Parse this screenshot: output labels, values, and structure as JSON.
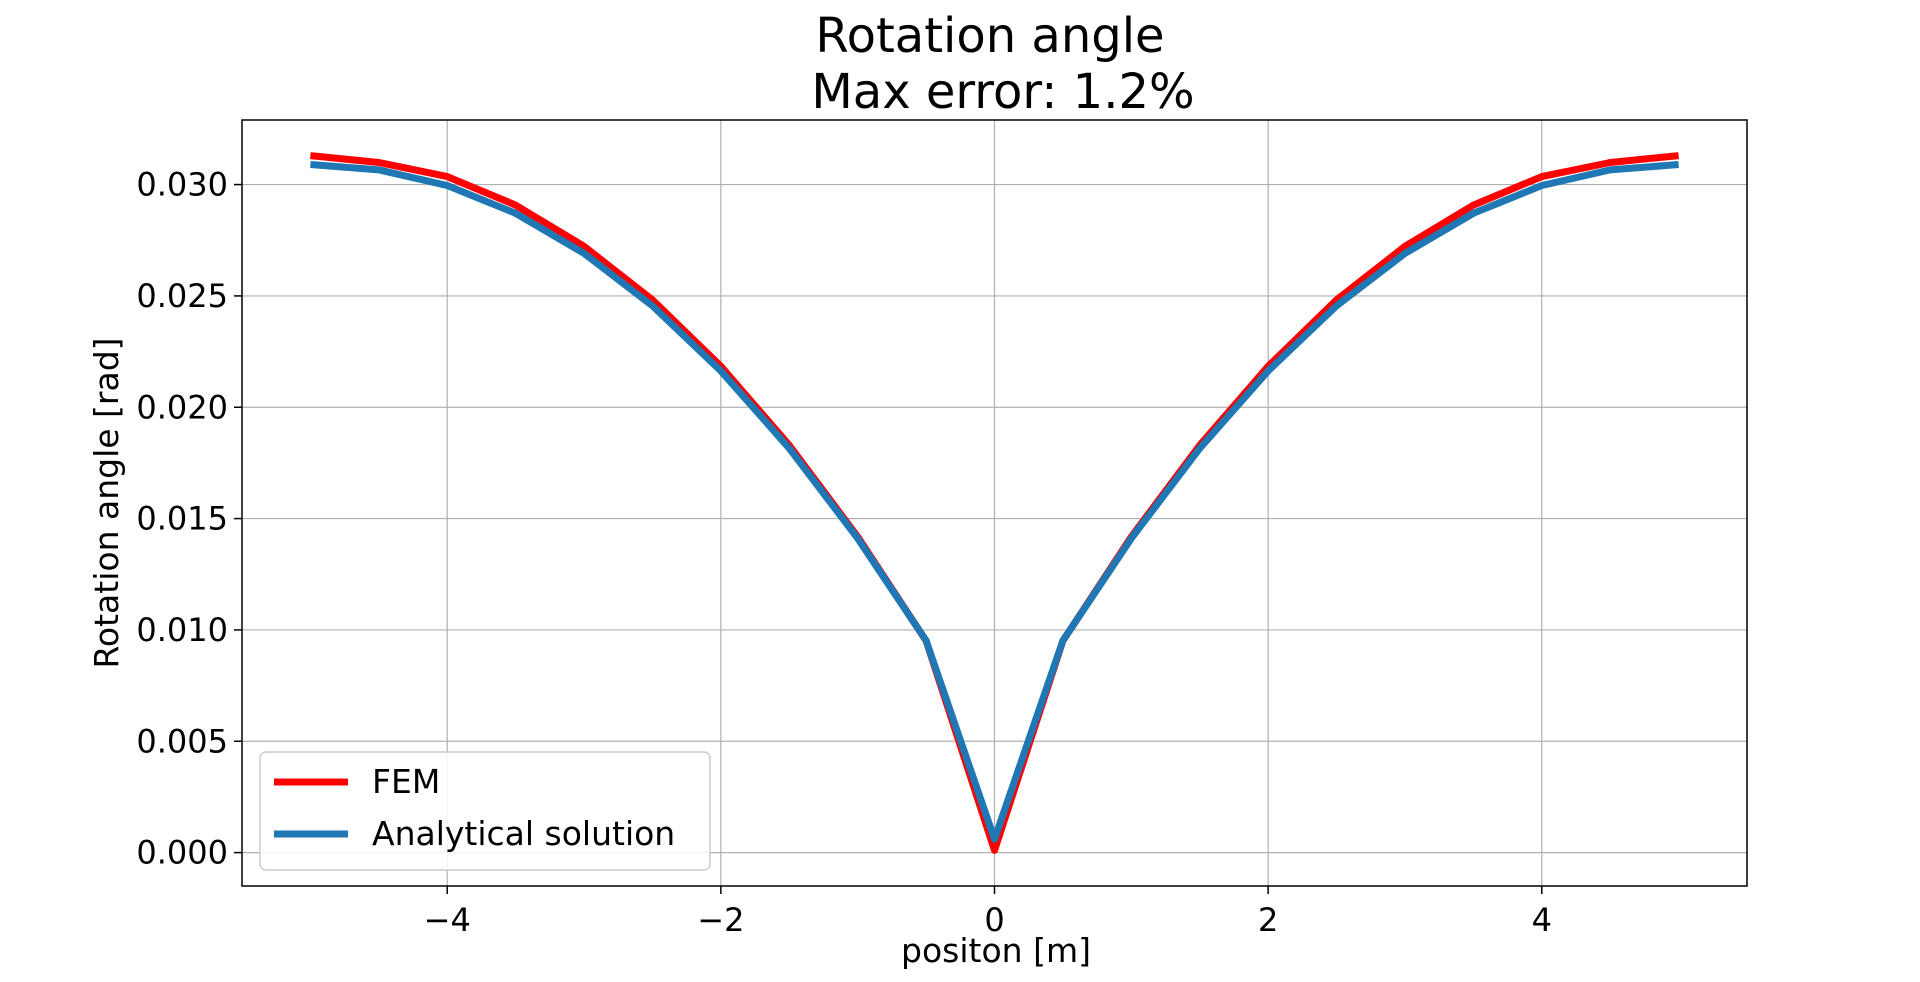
{
  "chart_data": {
    "type": "line",
    "title": "Rotation angle",
    "subtitle": "Max error: 1.2%",
    "xlabel": "positon [m]",
    "ylabel": "Rotation angle [rad]",
    "xlim": [
      -5.5,
      5.5
    ],
    "ylim": [
      -0.0015,
      0.0329
    ],
    "xticks": [
      -4,
      -2,
      0,
      2,
      4
    ],
    "xtick_labels": [
      "−4",
      "−2",
      "0",
      "2",
      "4"
    ],
    "yticks": [
      0.0,
      0.005,
      0.01,
      0.015,
      0.02,
      0.025,
      0.03
    ],
    "ytick_labels": [
      "0.000",
      "0.005",
      "0.010",
      "0.015",
      "0.020",
      "0.025",
      "0.030"
    ],
    "grid": true,
    "legend_position": "lower-left",
    "x": [
      -5,
      -4.5,
      -4,
      -3.5,
      -3,
      -2.5,
      -2,
      -1.5,
      -1,
      -0.5,
      0,
      0.5,
      1,
      1.5,
      2,
      2.5,
      3,
      3.5,
      4,
      4.5,
      5
    ],
    "series": [
      {
        "name": "FEM",
        "color": "#ff0000",
        "values": [
          0.0313,
          0.03099,
          0.03036,
          0.02908,
          0.02723,
          0.02482,
          0.02184,
          0.01829,
          0.01418,
          0.00951,
          0.0001,
          0.00951,
          0.01418,
          0.01829,
          0.02184,
          0.02482,
          0.02723,
          0.02908,
          0.03036,
          0.03099,
          0.0313
        ]
      },
      {
        "name": "Analytical solution",
        "color": "#1f77b4",
        "values": [
          0.0309,
          0.03066,
          0.02996,
          0.02871,
          0.02691,
          0.02455,
          0.02163,
          0.01815,
          0.01411,
          0.00952,
          0.0006,
          0.00952,
          0.01411,
          0.01815,
          0.02163,
          0.02455,
          0.02691,
          0.02871,
          0.02996,
          0.03066,
          0.0309
        ]
      }
    ]
  }
}
